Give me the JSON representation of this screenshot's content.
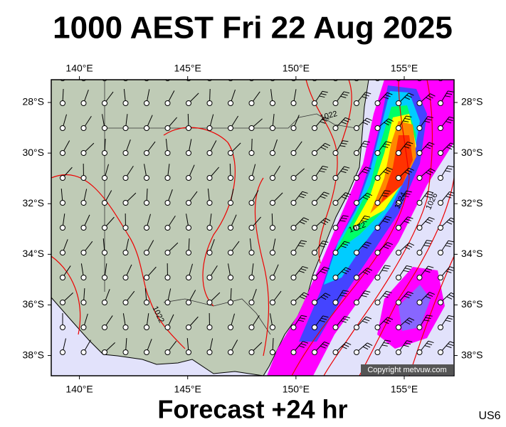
{
  "header": {
    "title": "1000 AEST Fri 22 Aug 2025"
  },
  "map": {
    "lon_ticks": [
      {
        "value": 140,
        "label": "140°E"
      },
      {
        "value": 145,
        "label": "145°E"
      },
      {
        "value": 150,
        "label": "150°E"
      },
      {
        "value": 155,
        "label": "155°E"
      }
    ],
    "lat_ticks": [
      {
        "value": -28,
        "label": "28°S"
      },
      {
        "value": -30,
        "label": "30°S"
      },
      {
        "value": -32,
        "label": "32°S"
      },
      {
        "value": -34,
        "label": "34°S"
      },
      {
        "value": -36,
        "label": "36°S"
      },
      {
        "value": -38,
        "label": "38°S"
      }
    ],
    "xlim": [
      138.7,
      157.3
    ],
    "ylim": [
      -38.8,
      -27.1
    ],
    "isobar_labels": [
      "1022",
      "1022",
      "1022",
      "1024",
      "1026"
    ],
    "copyright": "Copyright metvuw.com"
  },
  "footer": {
    "caption": "Forecast +24 hr",
    "code": "US6"
  }
}
